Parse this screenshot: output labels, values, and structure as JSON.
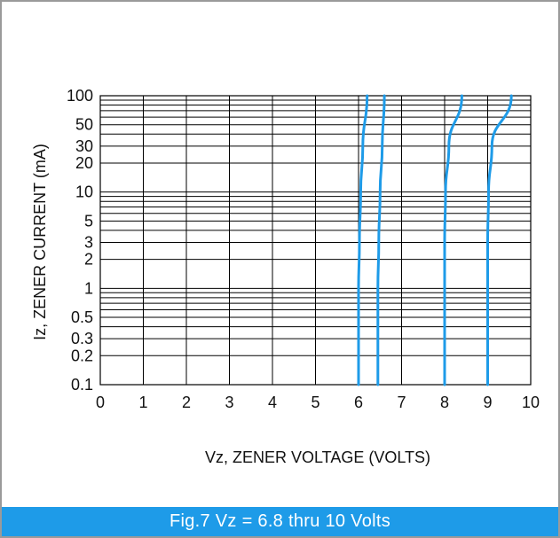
{
  "chart_data": {
    "type": "line",
    "title": "",
    "xlabel": "Vz, ZENER VOLTAGE (VOLTS)",
    "ylabel": "Iz, ZENER CURRENT (mA)",
    "xlim": [
      0,
      10
    ],
    "ylim": [
      0.1,
      100
    ],
    "x_ticks": [
      "0",
      "1",
      "2",
      "3",
      "4",
      "5",
      "6",
      "7",
      "8",
      "9",
      "10"
    ],
    "y_ticks": [
      {
        "value": 0.1,
        "label": "0.1"
      },
      {
        "value": 0.2,
        "label": "0.2"
      },
      {
        "value": 0.3,
        "label": "0.3"
      },
      {
        "value": 0.5,
        "label": "0.5"
      },
      {
        "value": 1,
        "label": "1"
      },
      {
        "value": 2,
        "label": "2"
      },
      {
        "value": 3,
        "label": "3"
      },
      {
        "value": 5,
        "label": "5"
      },
      {
        "value": 10,
        "label": "10"
      },
      {
        "value": 20,
        "label": "20"
      },
      {
        "value": 30,
        "label": "30"
      },
      {
        "value": 50,
        "label": "50"
      },
      {
        "value": 100,
        "label": "100"
      }
    ],
    "grid": true,
    "series_color": "#1e9be8",
    "series": [
      {
        "points": [
          [
            6.0,
            0.1
          ],
          [
            6.0,
            0.3
          ],
          [
            6.0,
            1
          ],
          [
            6.02,
            3
          ],
          [
            6.05,
            10
          ],
          [
            6.1,
            30
          ],
          [
            6.2,
            100
          ]
        ]
      },
      {
        "points": [
          [
            6.45,
            0.1
          ],
          [
            6.45,
            0.3
          ],
          [
            6.45,
            1
          ],
          [
            6.47,
            3
          ],
          [
            6.5,
            10
          ],
          [
            6.55,
            30
          ],
          [
            6.6,
            100
          ]
        ]
      },
      {
        "points": [
          [
            8.0,
            0.1
          ],
          [
            8.0,
            0.3
          ],
          [
            8.0,
            1
          ],
          [
            8.0,
            3
          ],
          [
            8.02,
            10
          ],
          [
            8.1,
            30
          ],
          [
            8.4,
            100
          ]
        ]
      },
      {
        "points": [
          [
            9.0,
            0.1
          ],
          [
            9.0,
            0.3
          ],
          [
            9.0,
            1
          ],
          [
            9.0,
            3
          ],
          [
            9.02,
            10
          ],
          [
            9.1,
            30
          ],
          [
            9.55,
            100
          ]
        ]
      }
    ]
  },
  "caption": {
    "text": "Fig.7 Vz = 6.8 thru 10 Volts"
  }
}
